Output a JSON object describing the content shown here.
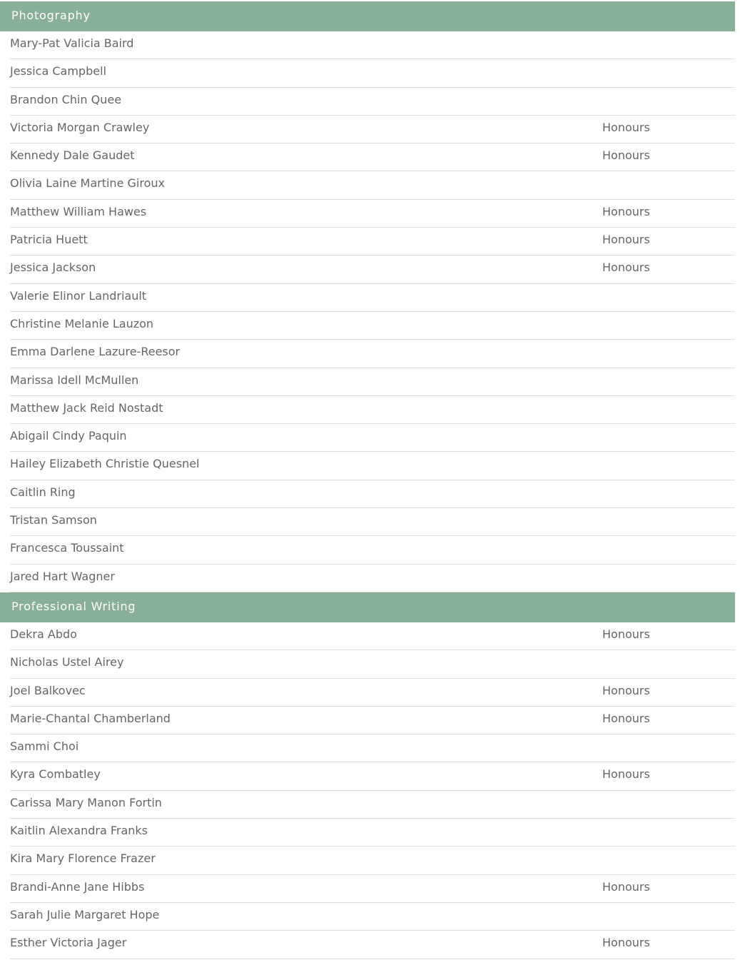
{
  "sections": [
    {
      "title": "Photography",
      "rows": [
        {
          "name": "Mary-Pat Valicia Baird"
        },
        {
          "name": "Jessica Campbell"
        },
        {
          "name": "Brandon Chin Quee"
        },
        {
          "name": "Victoria Morgan Crawley",
          "note": "Honours"
        },
        {
          "name": "Kennedy Dale Gaudet",
          "note": "Honours"
        },
        {
          "name": "Olivia Laine Martine Giroux"
        },
        {
          "name": "Matthew William Hawes",
          "note": "Honours"
        },
        {
          "name": "Patricia Huett",
          "note": "Honours"
        },
        {
          "name": "Jessica Jackson",
          "note": "Honours"
        },
        {
          "name": "Valerie Elinor Landriault"
        },
        {
          "name": "Christine Melanie Lauzon"
        },
        {
          "name": "Emma Darlene Lazure-Reesor"
        },
        {
          "name": "Marissa Idell McMullen"
        },
        {
          "name": "Matthew Jack Reid Nostadt"
        },
        {
          "name": "Abigail Cindy Paquin"
        },
        {
          "name": "Hailey Elizabeth Christie Quesnel"
        },
        {
          "name": "Caitlin Ring"
        },
        {
          "name": "Tristan Samson"
        },
        {
          "name": "Francesca Toussaint"
        },
        {
          "name": "Jared Hart Wagner"
        }
      ]
    },
    {
      "title": "Professional Writing",
      "rows": [
        {
          "name": "Dekra Abdo",
          "note": "Honours"
        },
        {
          "name": "Nicholas Ustel Airey"
        },
        {
          "name": "Joel Balkovec",
          "note": "Honours"
        },
        {
          "name": "Marie-Chantal Chamberland",
          "note": "Honours"
        },
        {
          "name": "Sammi Choi"
        },
        {
          "name": "Kyra Combatley",
          "note": "Honours"
        },
        {
          "name": "Carissa Mary Manon Fortin"
        },
        {
          "name": "Kaitlin Alexandra Franks"
        },
        {
          "name": "Kira Mary Florence Frazer"
        },
        {
          "name": "Brandi-Anne Jane Hibbs",
          "note": "Honours"
        },
        {
          "name": "Sarah Julie Margaret Hope"
        },
        {
          "name": "Esther Victoria Jager",
          "note": "Honours"
        }
      ]
    }
  ]
}
